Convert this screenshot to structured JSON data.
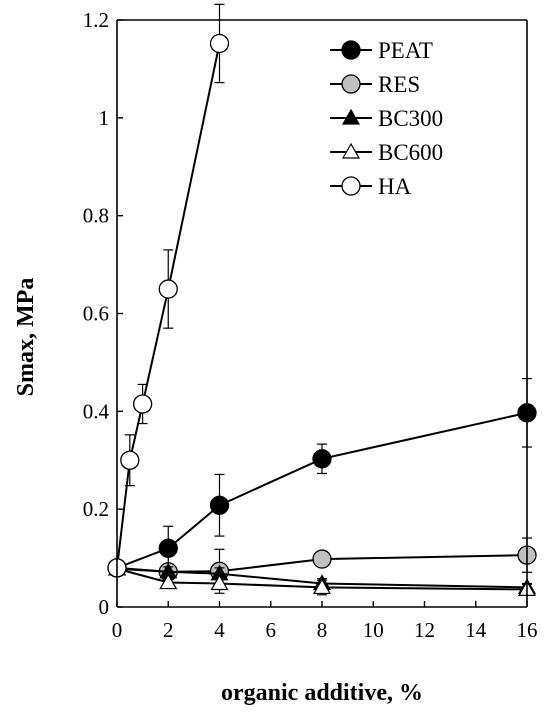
{
  "chart_data": {
    "type": "line",
    "title": "",
    "xlabel": "organic additive, %",
    "ylabel": "Smax, MPa",
    "xlim": [
      0,
      16
    ],
    "ylim": [
      0,
      1.2
    ],
    "x_ticks": [
      0,
      2,
      4,
      6,
      8,
      10,
      12,
      14,
      16
    ],
    "x_tick_labels": [
      "0",
      "2",
      "4",
      "6",
      "8",
      "10",
      "12",
      "14",
      "16"
    ],
    "y_ticks": [
      0,
      0.2,
      0.4,
      0.6,
      0.8,
      1.0,
      1.2
    ],
    "y_tick_labels": [
      "0",
      "0.2",
      "0.4",
      "0.6",
      "0.8",
      "1",
      "1.2"
    ],
    "grid": false,
    "legend_position": "top-right",
    "series": [
      {
        "name": "PEAT",
        "marker": "circle",
        "fill": "#000000",
        "points": [
          {
            "x": 0,
            "y": 0.08,
            "err": 0
          },
          {
            "x": 2,
            "y": 0.12,
            "err": 0.045
          },
          {
            "x": 4,
            "y": 0.208,
            "err": 0.063
          },
          {
            "x": 8,
            "y": 0.303,
            "err": 0.03
          },
          {
            "x": 16,
            "y": 0.397,
            "err": 0.07
          }
        ]
      },
      {
        "name": "RES",
        "marker": "circle",
        "fill": "#c0c0c0",
        "points": [
          {
            "x": 0,
            "y": 0.08,
            "err": 0
          },
          {
            "x": 2,
            "y": 0.072,
            "err": 0.015
          },
          {
            "x": 4,
            "y": 0.073,
            "err": 0.045
          },
          {
            "x": 8,
            "y": 0.098,
            "err": 0.012
          },
          {
            "x": 16,
            "y": 0.106,
            "err": 0.035
          }
        ]
      },
      {
        "name": "BC300",
        "marker": "triangle",
        "fill": "#000000",
        "points": [
          {
            "x": 0,
            "y": 0.078,
            "err": 0
          },
          {
            "x": 2,
            "y": 0.072,
            "err": 0.01
          },
          {
            "x": 4,
            "y": 0.068,
            "err": 0.012
          },
          {
            "x": 8,
            "y": 0.048,
            "err": 0.01
          },
          {
            "x": 16,
            "y": 0.04,
            "err": 0.008
          }
        ]
      },
      {
        "name": "BC600",
        "marker": "triangle",
        "fill": "#ffffff",
        "points": [
          {
            "x": 0,
            "y": 0.078,
            "err": 0
          },
          {
            "x": 2,
            "y": 0.05,
            "err": 0.008
          },
          {
            "x": 4,
            "y": 0.048,
            "err": 0.01
          },
          {
            "x": 8,
            "y": 0.04,
            "err": 0.015
          },
          {
            "x": 16,
            "y": 0.036,
            "err": 0.01
          }
        ]
      },
      {
        "name": "HA",
        "marker": "circle",
        "fill": "#ffffff",
        "points": [
          {
            "x": 0,
            "y": 0.08,
            "err": 0
          },
          {
            "x": 0.5,
            "y": 0.3,
            "err": 0.052
          },
          {
            "x": 1,
            "y": 0.415,
            "err": 0.04
          },
          {
            "x": 2,
            "y": 0.65,
            "err": 0.08
          },
          {
            "x": 4,
            "y": 1.152,
            "err": 0.08
          }
        ]
      }
    ]
  }
}
